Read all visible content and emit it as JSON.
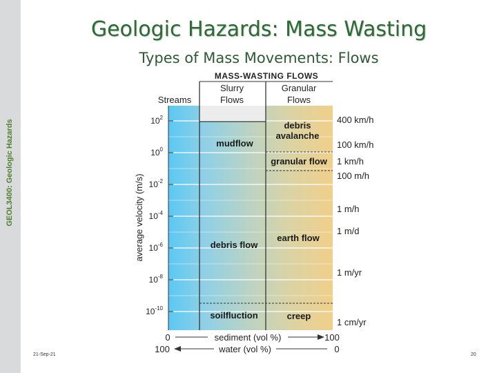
{
  "sidebar": {
    "label": "GEOL3400: Geologic Hazards"
  },
  "slide": {
    "title": "Geologic Hazards: Mass Wasting",
    "subtitle": "Types of Mass Movements: Flows"
  },
  "diagram": {
    "header": "MASS-WASTING FLOWS",
    "columns": {
      "streams": "Streams",
      "slurry_line1": "Slurry",
      "slurry_line2": "Flows",
      "granular_line1": "Granular",
      "granular_line2": "Flows"
    },
    "y_axis_label": "average velocity (m/s)",
    "y_ticks": [
      {
        "base": "10",
        "exp": "2"
      },
      {
        "base": "10",
        "exp": "0"
      },
      {
        "base": "10",
        "exp": "-2"
      },
      {
        "base": "10",
        "exp": "-4"
      },
      {
        "base": "10",
        "exp": "-6"
      },
      {
        "base": "10",
        "exp": "-8"
      },
      {
        "base": "10",
        "exp": "-10"
      }
    ],
    "speed_labels": [
      "400 km/h",
      "100 km/h",
      "1 km/h",
      "100 m/h",
      "1 m/h",
      "1 m/d",
      "1 m/yr",
      "1 cm/yr"
    ],
    "flows": {
      "mudflow": "mudflow",
      "debris_avalanche_line1": "debris",
      "debris_avalanche_line2": "avalanche",
      "granular_flow": "granular flow",
      "debris_flow": "debris flow",
      "earth_flow": "earth flow",
      "solifluction": "soilfluction",
      "creep": "creep"
    },
    "x_axis": {
      "sediment_label": "sediment (vol %)",
      "water_label": "water (vol %)",
      "sediment_min": "0",
      "sediment_max": "100",
      "water_min": "100",
      "water_max": "0"
    },
    "colors": {
      "streams": "#5bc8f3",
      "slurry": "#b3d0c7",
      "granular": "#ecd08d",
      "empty": "#eeeeee"
    }
  },
  "footer": {
    "date": "21-Sep-21",
    "page": "20"
  }
}
